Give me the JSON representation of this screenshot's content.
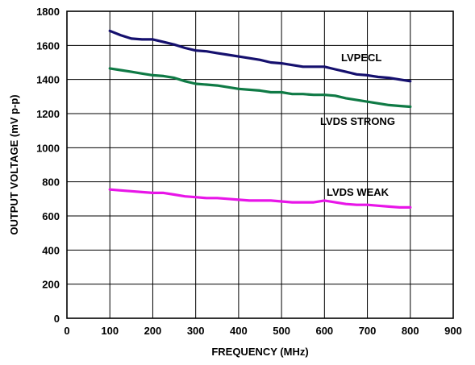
{
  "chart_data": {
    "type": "line",
    "title": "",
    "xlabel": "FREQUENCY (MHz)",
    "ylabel": "OUTPUT VOLTAGE (mV p-p)",
    "xlim": [
      0,
      900
    ],
    "ylim": [
      0,
      1800
    ],
    "xticks": [
      0,
      100,
      200,
      300,
      400,
      500,
      600,
      700,
      800,
      900
    ],
    "yticks": [
      0,
      200,
      400,
      600,
      800,
      1000,
      1200,
      1400,
      1600,
      1800
    ],
    "xtick_labels": [
      "0",
      "100",
      "200",
      "300",
      "400",
      "500",
      "600",
      "700",
      "800",
      "900"
    ],
    "ytick_labels": [
      "0",
      "200",
      "400",
      "600",
      "800",
      "1000",
      "1200",
      "1400",
      "1600",
      "1800"
    ],
    "grid": true,
    "series": [
      {
        "name": "LVPECL",
        "color": "#15106e",
        "x": [
          100,
          125,
          150,
          175,
          200,
          225,
          250,
          275,
          300,
          325,
          350,
          375,
          400,
          425,
          450,
          475,
          500,
          525,
          550,
          575,
          600,
          625,
          650,
          675,
          700,
          725,
          750,
          775,
          800
        ],
        "y": [
          1685,
          1660,
          1640,
          1635,
          1635,
          1620,
          1605,
          1585,
          1570,
          1565,
          1555,
          1545,
          1535,
          1525,
          1515,
          1500,
          1495,
          1485,
          1475,
          1475,
          1475,
          1460,
          1445,
          1430,
          1425,
          1415,
          1410,
          1400,
          1390
        ]
      },
      {
        "name": "LVDS STRONG",
        "color": "#0f7a45",
        "x": [
          100,
          125,
          150,
          175,
          200,
          225,
          250,
          275,
          300,
          325,
          350,
          375,
          400,
          425,
          450,
          475,
          500,
          525,
          550,
          575,
          600,
          625,
          650,
          675,
          700,
          725,
          750,
          775,
          800
        ],
        "y": [
          1465,
          1455,
          1445,
          1435,
          1425,
          1420,
          1410,
          1390,
          1375,
          1370,
          1365,
          1355,
          1345,
          1340,
          1335,
          1325,
          1325,
          1315,
          1315,
          1310,
          1310,
          1305,
          1290,
          1280,
          1270,
          1260,
          1250,
          1245,
          1240
        ]
      },
      {
        "name": "LVDS WEAK",
        "color": "#e815e8",
        "x": [
          100,
          125,
          150,
          175,
          200,
          225,
          250,
          275,
          300,
          325,
          350,
          375,
          400,
          425,
          450,
          475,
          500,
          525,
          550,
          575,
          600,
          625,
          650,
          675,
          700,
          725,
          750,
          775,
          800
        ],
        "y": [
          755,
          750,
          745,
          740,
          735,
          735,
          725,
          715,
          710,
          705,
          705,
          700,
          695,
          690,
          690,
          690,
          685,
          680,
          680,
          680,
          690,
          680,
          670,
          665,
          665,
          660,
          655,
          650,
          650
        ]
      }
    ]
  }
}
